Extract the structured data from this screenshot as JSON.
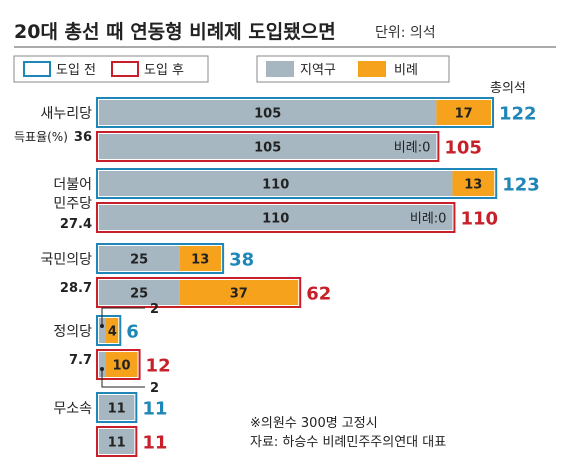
{
  "header": {
    "title": "20대 총선 때 연동형 비례제 도입됐으면",
    "unit": "단위: 의석"
  },
  "legend": {
    "before": "도입 전",
    "after": "도입 후",
    "district": "지역구",
    "proportional": "비례"
  },
  "total_label": "총의석",
  "footnotes": {
    "note": "※의원수 300명 고정시",
    "source": "자료: 하승수 비례민주주의연대 대표"
  },
  "colors": {
    "district": "#a7b7c1",
    "proportional": "#f6a21c",
    "before": "#1e87b8",
    "after": "#c8202a",
    "text": "#222222"
  },
  "chart_data": {
    "type": "bar",
    "orientation": "horizontal",
    "stacked": true,
    "title": "20대 총선 때 연동형 비례제 도입됐으면",
    "unit": "단위: 의석",
    "categories": [
      "새누리당",
      "더불어민주당",
      "국민의당",
      "정의당",
      "무소속"
    ],
    "vote_share_label": "득표율(%)",
    "vote_share": [
      "36",
      "27.4",
      "28.7",
      "7.7",
      ""
    ],
    "series_names": [
      "지역구",
      "비례"
    ],
    "scenarios": [
      "도입 전",
      "도입 후"
    ],
    "parties": [
      {
        "name": "새누리당",
        "name_lines": [
          "새누리당"
        ],
        "vote_share": "36",
        "before": {
          "district": 105,
          "proportional": 17,
          "total": 122
        },
        "after": {
          "district": 105,
          "proportional": 0,
          "total": 105,
          "zero_label": "비례:0"
        }
      },
      {
        "name": "더불어민주당",
        "name_lines": [
          "더불어",
          "민주당"
        ],
        "vote_share": "27.4",
        "before": {
          "district": 110,
          "proportional": 13,
          "total": 123
        },
        "after": {
          "district": 110,
          "proportional": 0,
          "total": 110,
          "zero_label": "비례:0"
        }
      },
      {
        "name": "국민의당",
        "name_lines": [
          "국민의당"
        ],
        "vote_share": "28.7",
        "before": {
          "district": 25,
          "proportional": 13,
          "total": 38
        },
        "after": {
          "district": 25,
          "proportional": 37,
          "total": 62
        }
      },
      {
        "name": "정의당",
        "name_lines": [
          "정의당"
        ],
        "vote_share": "7.7",
        "before": {
          "district": 2,
          "proportional": 4,
          "total": 6,
          "district_callout": "2"
        },
        "after": {
          "district": 2,
          "proportional": 10,
          "total": 12,
          "district_callout": "2"
        }
      },
      {
        "name": "무소속",
        "name_lines": [
          "무소속"
        ],
        "vote_share": "",
        "before": {
          "district": 11,
          "proportional": 0,
          "total": 11
        },
        "after": {
          "district": 11,
          "proportional": 0,
          "total": 11
        }
      }
    ]
  }
}
